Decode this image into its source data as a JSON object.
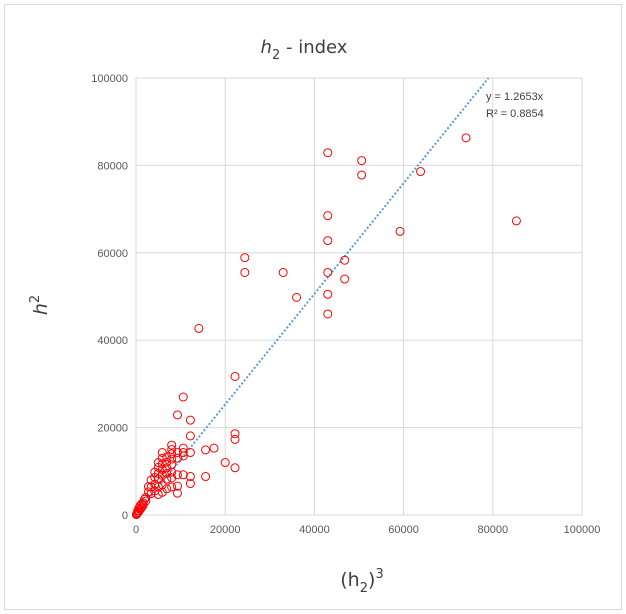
{
  "chart_data": {
    "type": "scatter",
    "title": {
      "base": "h",
      "sub": "2",
      "rest": " - index"
    },
    "xlabel": {
      "open": "(h",
      "sub": "2",
      "close": ")",
      "sup": "3"
    },
    "ylabel": {
      "base": "h",
      "sup": "2"
    },
    "xlim": [
      0,
      100000
    ],
    "ylim": [
      0,
      100000
    ],
    "xticks": [
      0,
      20000,
      40000,
      60000,
      80000,
      100000
    ],
    "yticks": [
      0,
      20000,
      40000,
      60000,
      80000,
      100000
    ],
    "xtick_labels": [
      "0",
      "20000",
      "40000",
      "60000",
      "80000",
      "100000"
    ],
    "ytick_labels": [
      "0",
      "20000",
      "40000",
      "60000",
      "80000",
      "100000"
    ],
    "grid": true,
    "marker_color": "#ff0000",
    "trendline_color": "#5b9bd5",
    "trendline": {
      "slope": 1.2653,
      "intercept": 0
    },
    "equation_label": "y = 1.2653x",
    "r2_label": "R² = 0.8854",
    "points": [
      [
        85300,
        67300
      ],
      [
        74000,
        86300
      ],
      [
        63800,
        78600
      ],
      [
        59200,
        64900
      ],
      [
        50600,
        81100
      ],
      [
        50600,
        77800
      ],
      [
        46800,
        58300
      ],
      [
        46800,
        54000
      ],
      [
        43000,
        82900
      ],
      [
        43000,
        68500
      ],
      [
        43000,
        62800
      ],
      [
        43000,
        55500
      ],
      [
        43000,
        50500
      ],
      [
        43000,
        46000
      ],
      [
        36000,
        49800
      ],
      [
        33000,
        55500
      ],
      [
        24400,
        58900
      ],
      [
        24400,
        55500
      ],
      [
        22200,
        31700
      ],
      [
        22200,
        18600
      ],
      [
        22200,
        17300
      ],
      [
        22200,
        10800
      ],
      [
        20000,
        12000
      ],
      [
        17500,
        15300
      ],
      [
        15600,
        14900
      ],
      [
        15600,
        8800
      ],
      [
        14100,
        42700
      ],
      [
        12200,
        21700
      ],
      [
        12200,
        18100
      ],
      [
        12200,
        14300
      ],
      [
        12200,
        8800
      ],
      [
        12200,
        7200
      ],
      [
        10600,
        27000
      ],
      [
        10600,
        15300
      ],
      [
        10600,
        14300
      ],
      [
        10600,
        13500
      ],
      [
        10600,
        9200
      ],
      [
        9300,
        22900
      ],
      [
        9300,
        14300
      ],
      [
        9300,
        13000
      ],
      [
        9300,
        9200
      ],
      [
        9300,
        6600
      ],
      [
        9300,
        5000
      ],
      [
        8000,
        16000
      ],
      [
        8000,
        15000
      ],
      [
        8000,
        14000
      ],
      [
        8000,
        12800
      ],
      [
        8000,
        11500
      ],
      [
        8000,
        9800
      ],
      [
        8000,
        8500
      ],
      [
        8000,
        6400
      ],
      [
        6900,
        13300
      ],
      [
        6900,
        12100
      ],
      [
        6900,
        10800
      ],
      [
        6900,
        9500
      ],
      [
        6900,
        8200
      ],
      [
        6900,
        6000
      ],
      [
        5900,
        14300
      ],
      [
        5900,
        13000
      ],
      [
        5900,
        11700
      ],
      [
        5900,
        10400
      ],
      [
        5900,
        9100
      ],
      [
        5900,
        6900
      ],
      [
        5900,
        5200
      ],
      [
        5000,
        12000
      ],
      [
        5000,
        10900
      ],
      [
        5000,
        9500
      ],
      [
        5000,
        8200
      ],
      [
        5000,
        6400
      ],
      [
        5000,
        4700
      ],
      [
        4200,
        9800
      ],
      [
        4200,
        8600
      ],
      [
        4200,
        7000
      ],
      [
        4200,
        5500
      ],
      [
        3400,
        8000
      ],
      [
        3400,
        6400
      ],
      [
        3400,
        4900
      ],
      [
        2800,
        6500
      ],
      [
        2800,
        5300
      ],
      [
        2200,
        4000
      ],
      [
        2200,
        3200
      ],
      [
        1900,
        3600
      ],
      [
        1600,
        2800
      ],
      [
        1600,
        2200
      ],
      [
        1300,
        2600
      ],
      [
        1300,
        1800
      ],
      [
        1100,
        1500
      ],
      [
        900,
        2100
      ],
      [
        900,
        1300
      ],
      [
        700,
        900
      ],
      [
        600,
        1500
      ],
      [
        500,
        600
      ],
      [
        400,
        1000
      ],
      [
        300,
        400
      ],
      [
        200,
        300
      ],
      [
        100,
        100
      ]
    ]
  }
}
